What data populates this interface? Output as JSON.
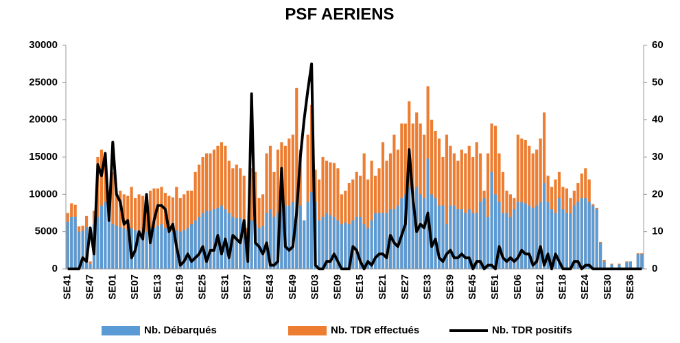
{
  "chart_data": {
    "type": "bar",
    "title": "PSF AERIENS",
    "categories": [
      "SE41",
      null,
      null,
      null,
      null,
      null,
      "SE47",
      null,
      null,
      null,
      null,
      null,
      "SE01",
      null,
      null,
      null,
      null,
      null,
      "SE07",
      null,
      null,
      null,
      null,
      null,
      "SE13",
      null,
      null,
      null,
      null,
      null,
      "SE19",
      null,
      null,
      null,
      null,
      null,
      "SE25",
      null,
      null,
      null,
      null,
      null,
      "SE31",
      null,
      null,
      null,
      null,
      null,
      "SE37",
      null,
      null,
      null,
      null,
      null,
      "SE43",
      null,
      null,
      null,
      null,
      null,
      "SE49",
      null,
      null,
      null,
      null,
      null,
      "SE03",
      null,
      null,
      null,
      null,
      null,
      "SE09",
      null,
      null,
      null,
      null,
      null,
      "SE15",
      null,
      null,
      null,
      null,
      null,
      "SE21",
      null,
      null,
      null,
      null,
      null,
      "SE27",
      null,
      null,
      null,
      null,
      null,
      "SE33",
      null,
      null,
      null,
      null,
      null,
      "SE39",
      null,
      null,
      null,
      null,
      null,
      "SE45",
      null,
      null,
      null,
      null,
      null,
      "SE51",
      null,
      null,
      null,
      null,
      null,
      "SE06",
      null,
      null,
      null,
      null,
      null,
      "SE12",
      null,
      null,
      null,
      null,
      null,
      "SE18",
      null,
      null,
      null,
      null,
      null,
      "SE24",
      null,
      null,
      null,
      null,
      null,
      "SE30",
      null,
      null,
      null,
      null,
      null,
      "SE36",
      null,
      null,
      null
    ],
    "series": [
      {
        "name": "Nb. TDR effectués",
        "color": "#ed7d31",
        "values": [
          7500,
          8800,
          8600,
          5700,
          5800,
          7100,
          1000,
          7800,
          15000,
          16000,
          14500,
          10500,
          13000,
          10000,
          10500,
          10000,
          9800,
          11000,
          9500,
          10000,
          9800,
          9500,
          10500,
          10800,
          10800,
          11000,
          10200,
          9800,
          9600,
          11000,
          9500,
          10000,
          10500,
          10500,
          13000,
          14000,
          15000,
          15500,
          15500,
          16000,
          16500,
          17000,
          16500,
          14500,
          13500,
          14000,
          13500,
          12500,
          5500,
          13500,
          13000,
          9500,
          10000,
          15500,
          16500,
          13000,
          16000,
          17000,
          16500,
          17500,
          18000,
          24300,
          16000,
          6500,
          18000,
          22000,
          13300,
          12000,
          15000,
          14500,
          14300,
          14200,
          13500,
          10000,
          10500,
          11500,
          12000,
          13000,
          12500,
          15500,
          12000,
          14500,
          12500,
          13500,
          17000,
          14500,
          15500,
          18000,
          16000,
          19500,
          19500,
          22500,
          19500,
          21000,
          19500,
          18000,
          24500,
          20000,
          18500,
          17500,
          15000,
          18000,
          16500,
          15500,
          14500,
          16000,
          15500,
          16500,
          15000,
          17000,
          15500,
          10500,
          15500,
          19500,
          19200,
          15500,
          13000,
          10500,
          10000,
          9500,
          18000,
          17500,
          17300,
          16500,
          15500,
          16000,
          17500,
          21000,
          12500,
          11000,
          12000,
          13000,
          11000,
          10800,
          9500,
          10500,
          11500,
          12800,
          13500,
          12000,
          8700,
          8200,
          3600,
          1200,
          0,
          700,
          0,
          700,
          0,
          1000,
          1000,
          0,
          2100,
          2100
        ]
      },
      {
        "name": "Nb. Débarqués",
        "color": "#5b9bd5",
        "values": [
          6300,
          7000,
          7000,
          5000,
          5100,
          5600,
          700,
          6000,
          7000,
          8500,
          9000,
          8000,
          6000,
          5800,
          5600,
          5500,
          5200,
          5500,
          5200,
          5000,
          5200,
          5000,
          5500,
          5500,
          5800,
          6000,
          5500,
          5200,
          5000,
          5200,
          5000,
          5200,
          5500,
          6000,
          6500,
          7000,
          7500,
          7800,
          7800,
          8000,
          8200,
          8500,
          8000,
          7500,
          7000,
          6800,
          6800,
          6500,
          3000,
          6500,
          6000,
          5500,
          5800,
          7500,
          8000,
          7000,
          7500,
          8000,
          8500,
          8500,
          9000,
          9000,
          8500,
          6500,
          9000,
          10300,
          9000,
          6500,
          7000,
          7500,
          7200,
          7000,
          6500,
          6000,
          6200,
          6000,
          6500,
          7000,
          7000,
          6000,
          5500,
          6500,
          7500,
          7500,
          7500,
          7500,
          8000,
          8000,
          8500,
          9500,
          10000,
          11000,
          10500,
          11000,
          10000,
          9500,
          14800,
          10000,
          9500,
          8500,
          8500,
          6000,
          8500,
          8500,
          8000,
          8000,
          7500,
          8000,
          7500,
          7500,
          9000,
          9500,
          7000,
          13000,
          10000,
          9000,
          7500,
          7500,
          7000,
          8000,
          9000,
          9000,
          8800,
          8500,
          8200,
          8500,
          9000,
          11500,
          9000,
          8000,
          7500,
          9500,
          8000,
          7500,
          7500,
          8500,
          9000,
          9500,
          9500,
          9000,
          8500,
          8000,
          3500,
          1000,
          0,
          600,
          0,
          600,
          0,
          900,
          1000,
          0,
          2000,
          2000
        ]
      },
      {
        "name": "Nb. TDR positifs",
        "color": "#000000",
        "type": "line",
        "axis": "y2",
        "values": [
          0,
          0,
          0,
          0,
          3,
          2,
          11,
          4,
          28,
          25,
          31,
          13,
          34,
          20,
          18,
          12,
          13,
          3,
          5,
          10,
          8,
          20,
          7,
          13,
          17,
          17,
          16,
          10,
          12,
          6,
          1,
          2,
          4,
          2,
          3,
          4,
          6,
          2,
          5,
          5,
          9,
          4,
          8,
          3,
          9,
          8,
          7,
          13,
          2,
          47,
          7,
          6,
          4,
          7,
          1,
          1,
          2,
          27,
          6,
          5,
          6,
          15,
          30,
          40,
          48,
          55,
          1,
          0,
          0,
          2,
          2,
          4,
          2,
          0,
          0,
          0,
          6,
          5,
          2,
          0,
          2,
          1,
          3,
          4,
          4,
          3,
          9,
          7,
          6,
          9,
          12,
          32,
          19,
          10,
          12,
          11,
          15,
          6,
          8,
          3,
          2,
          4,
          5,
          3,
          3,
          4,
          3,
          3,
          0,
          2,
          2,
          0,
          1,
          1,
          0,
          6,
          3,
          2,
          3,
          2,
          3,
          5,
          4,
          4,
          1,
          2,
          6,
          1,
          4,
          0,
          4,
          2,
          0,
          0,
          0,
          2,
          2,
          0,
          1,
          1,
          0,
          0,
          0,
          0,
          0,
          0,
          0,
          0,
          0,
          0,
          0,
          0,
          0,
          0
        ]
      }
    ],
    "ylim": [
      0,
      30000
    ],
    "yticks": [
      0,
      5000,
      10000,
      15000,
      20000,
      25000,
      30000
    ],
    "y2lim": [
      0,
      60
    ],
    "y2ticks": [
      0,
      10,
      20,
      30,
      40,
      50,
      60
    ],
    "legend": "bottom"
  }
}
